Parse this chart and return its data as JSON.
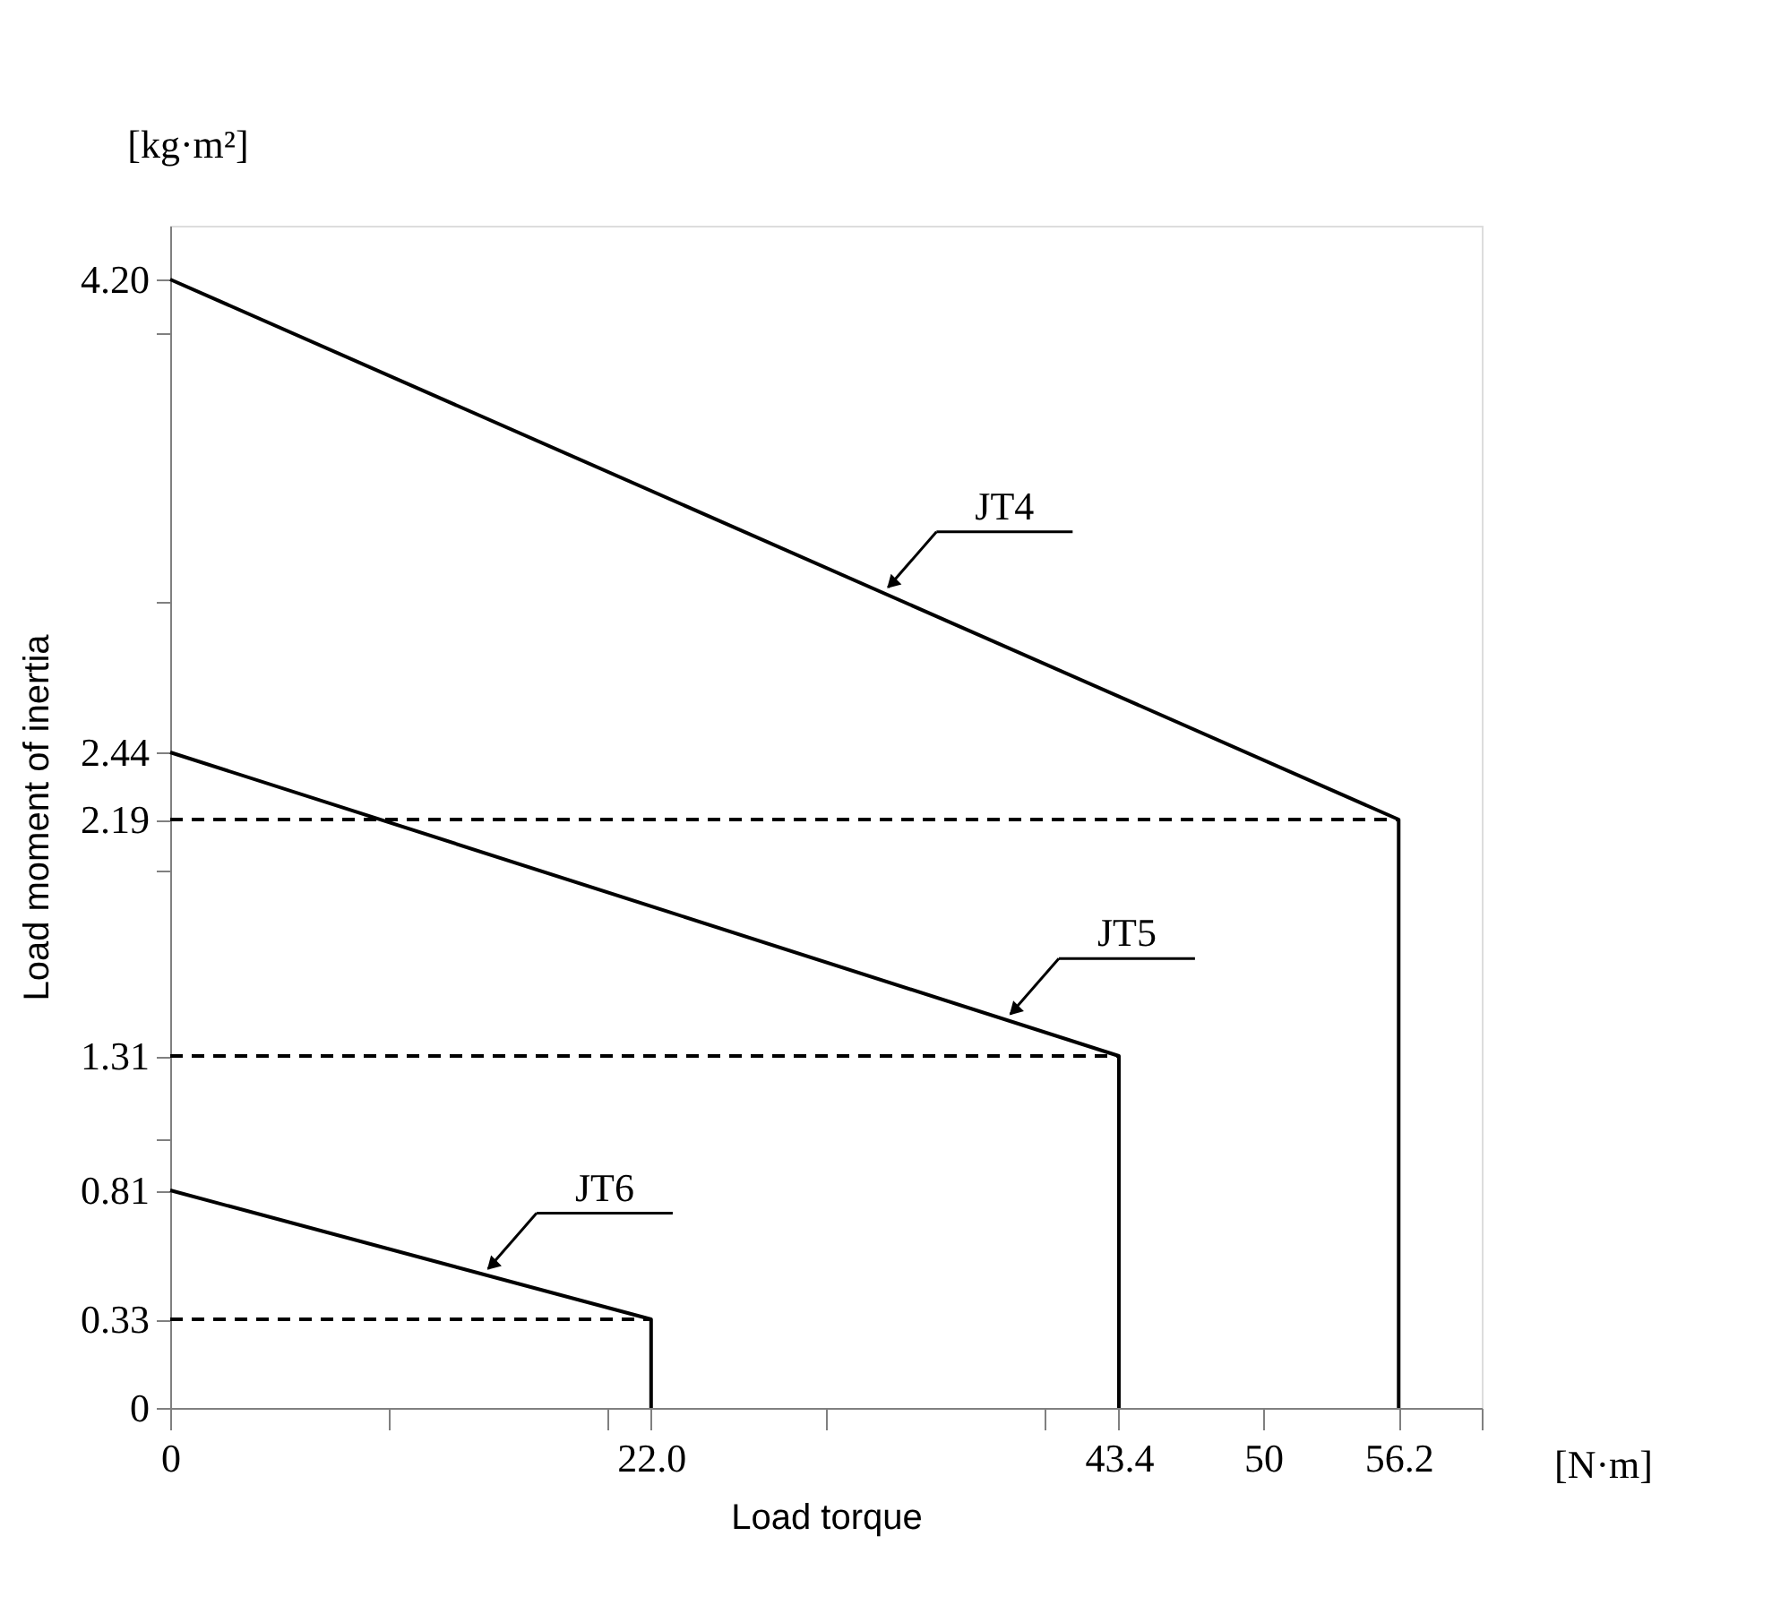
{
  "chart_data": {
    "type": "line",
    "xlabel": "Load torque",
    "ylabel": "Load moment of inertia",
    "annotations": [
      "[kg·m²]",
      "[N·m]"
    ],
    "xlim": [
      0,
      60
    ],
    "ylim": [
      0,
      4.4
    ],
    "xticks": [
      0,
      {
        "value": 10,
        "label": null
      },
      {
        "value": 20,
        "label": null
      },
      {
        "value": 22,
        "label": "22.0"
      },
      {
        "value": 30,
        "label": null
      },
      {
        "value": 40,
        "label": null
      },
      43.4,
      50,
      56.2,
      {
        "value": 60,
        "label": null
      }
    ],
    "yticks": [
      0,
      0.33,
      0.81,
      {
        "value": 1,
        "label": null
      },
      1.31,
      {
        "value": 2,
        "label": null
      },
      2.19,
      2.44,
      {
        "value": 3,
        "label": null
      },
      {
        "value": 4,
        "label": null
      },
      {
        "value": 4.2,
        "label": "4.20"
      }
    ],
    "grid": false,
    "marker": "none",
    "line_style": "solid",
    "series": [
      {
        "name": "JT4",
        "color": "#000000",
        "x": [
          0,
          56.2,
          56.2
        ],
        "values": [
          4.2,
          2.19,
          0
        ]
      },
      {
        "name": "JT5",
        "color": "#000000",
        "x": [
          0,
          43.4,
          43.4
        ],
        "values": [
          2.44,
          1.31,
          0
        ]
      },
      {
        "name": "JT6",
        "color": "#000000",
        "x": [
          0,
          22.0,
          22.0
        ],
        "values": [
          0.81,
          0.33,
          0
        ]
      },
      {
        "color": "#000000",
        "line_style": "dashed",
        "x": [
          0,
          56.2
        ],
        "values": [
          2.19,
          2.19
        ]
      },
      {
        "color": "#000000",
        "line_style": "dashed",
        "x": [
          0,
          43.4
        ],
        "values": [
          1.31,
          1.31
        ]
      },
      {
        "color": "#000000",
        "line_style": "dashed",
        "x": [
          0,
          22.0
        ],
        "values": [
          0.33,
          0.33
        ]
      }
    ]
  }
}
